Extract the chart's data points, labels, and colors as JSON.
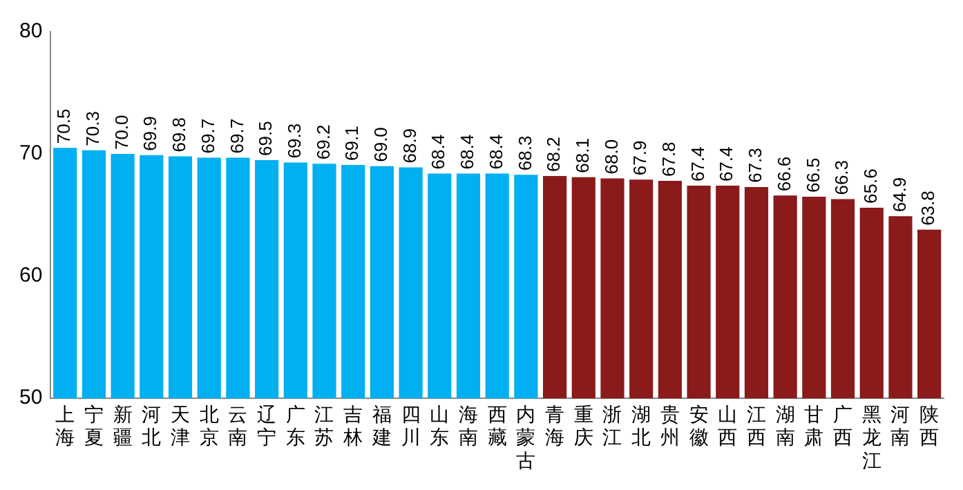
{
  "chart_data": {
    "type": "bar",
    "categories": [
      "上海",
      "宁夏",
      "新疆",
      "河北",
      "天津",
      "北京",
      "云南",
      "辽宁",
      "广东",
      "江苏",
      "吉林",
      "福建",
      "四川",
      "山东",
      "海南",
      "西藏",
      "内蒙古",
      "青海",
      "重庆",
      "浙江",
      "湖北",
      "贵州",
      "安徽",
      "山西",
      "江西",
      "湖南",
      "甘肃",
      "广西",
      "黑龙江",
      "河南",
      "陕西"
    ],
    "values": [
      70.5,
      70.3,
      70.0,
      69.9,
      69.8,
      69.7,
      69.7,
      69.5,
      69.3,
      69.2,
      69.1,
      69.0,
      68.9,
      68.4,
      68.4,
      68.4,
      68.3,
      68.2,
      68.1,
      68.0,
      67.9,
      67.8,
      67.4,
      67.4,
      67.3,
      66.6,
      66.5,
      66.3,
      65.6,
      64.9,
      63.8
    ],
    "value_labels": [
      "70.5",
      "70.3",
      "70.0",
      "69.9",
      "69.8",
      "69.7",
      "69.7",
      "69.5",
      "69.3",
      "69.2",
      "69.1",
      "69.0",
      "68.9",
      "68.4",
      "68.4",
      "68.4",
      "68.3",
      "68.2",
      "68.1",
      "68.0",
      "67.9",
      "67.8",
      "67.4",
      "67.4",
      "67.3",
      "66.6",
      "66.5",
      "66.3",
      "65.6",
      "64.9",
      "63.8"
    ],
    "colors": [
      "#00b0f0",
      "#00b0f0",
      "#00b0f0",
      "#00b0f0",
      "#00b0f0",
      "#00b0f0",
      "#00b0f0",
      "#00b0f0",
      "#00b0f0",
      "#00b0f0",
      "#00b0f0",
      "#00b0f0",
      "#00b0f0",
      "#00b0f0",
      "#00b0f0",
      "#00b0f0",
      "#00b0f0",
      "#8b1a1a",
      "#8b1a1a",
      "#8b1a1a",
      "#8b1a1a",
      "#8b1a1a",
      "#8b1a1a",
      "#8b1a1a",
      "#8b1a1a",
      "#8b1a1a",
      "#8b1a1a",
      "#8b1a1a",
      "#8b1a1a",
      "#8b1a1a",
      "#8b1a1a"
    ],
    "ylim": [
      50,
      80
    ],
    "yticks": [
      50,
      60,
      70,
      80
    ],
    "grid": false,
    "legend": false
  }
}
